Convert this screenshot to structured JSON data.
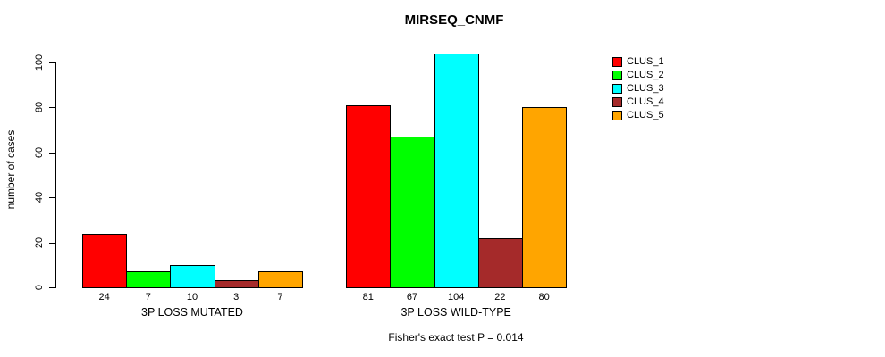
{
  "chart_data": {
    "type": "bar",
    "title": "MIRSEQ_CNMF",
    "ylabel": "number of cases",
    "xlabel": "",
    "footnote": "Fisher's exact test P = 0.014",
    "categories": [
      "3P LOSS MUTATED",
      "3P LOSS WILD-TYPE"
    ],
    "series": [
      {
        "name": "CLUS_1",
        "color": "#ff0000",
        "values": [
          24,
          81
        ]
      },
      {
        "name": "CLUS_2",
        "color": "#00ff00",
        "values": [
          7,
          67
        ]
      },
      {
        "name": "CLUS_3",
        "color": "#00ffff",
        "values": [
          10,
          104
        ]
      },
      {
        "name": "CLUS_4",
        "color": "#a52a2a",
        "values": [
          3,
          22
        ]
      },
      {
        "name": "CLUS_5",
        "color": "#ffa500",
        "values": [
          7,
          80
        ]
      }
    ],
    "bar_value_labels": [
      [
        24,
        7,
        10,
        3,
        7
      ],
      [
        81,
        67,
        104,
        22,
        80
      ]
    ],
    "yticks": [
      0,
      20,
      40,
      60,
      80,
      100
    ],
    "ylim": [
      0,
      100
    ],
    "grid": false,
    "legend_position": "right",
    "background": "#ffffff",
    "bar_border_color": "#000000"
  }
}
